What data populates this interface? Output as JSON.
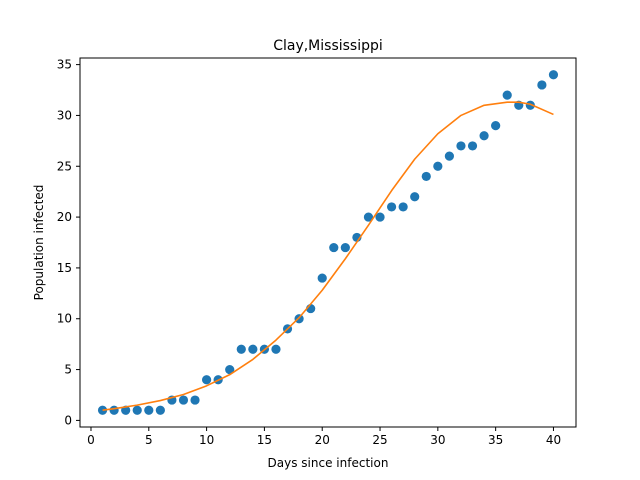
{
  "chart_data": {
    "type": "scatter",
    "title": "Clay,Mississippi",
    "xlabel": "Days since infection",
    "ylabel": "Population infected",
    "xlim": [
      -0.95,
      41.95
    ],
    "ylim": [
      -0.65,
      35.65
    ],
    "xticks": [
      0,
      5,
      10,
      15,
      20,
      25,
      30,
      35,
      40
    ],
    "yticks": [
      0,
      5,
      10,
      15,
      20,
      25,
      30,
      35
    ],
    "grid": false,
    "series": [
      {
        "kind": "scatter",
        "color": "#1f77b4",
        "x": [
          1,
          2,
          3,
          4,
          5,
          6,
          7,
          8,
          9,
          10,
          11,
          12,
          13,
          14,
          15,
          16,
          17,
          18,
          19,
          20,
          21,
          22,
          23,
          24,
          25,
          26,
          27,
          28,
          29,
          30,
          31,
          32,
          33,
          34,
          35,
          36,
          37,
          38,
          39,
          40
        ],
        "y": [
          1,
          1,
          1,
          1,
          1,
          1,
          2,
          2,
          2,
          4,
          4,
          5,
          7,
          7,
          7,
          7,
          9,
          10,
          11,
          14,
          17,
          17,
          18,
          20,
          20,
          21,
          21,
          22,
          24,
          25,
          26,
          27,
          27,
          28,
          29,
          32,
          31,
          31,
          33,
          34
        ]
      },
      {
        "kind": "line",
        "color": "#ff7f0e",
        "x": [
          1,
          2,
          4,
          6,
          8,
          10,
          12,
          14,
          16,
          18,
          20,
          22,
          24,
          26,
          28,
          30,
          32,
          34,
          36,
          37,
          38,
          40
        ],
        "y": [
          1.0,
          1.15,
          1.5,
          1.95,
          2.55,
          3.4,
          4.5,
          6.0,
          7.9,
          10.1,
          12.8,
          15.9,
          19.2,
          22.6,
          25.7,
          28.2,
          30.0,
          31.0,
          31.3,
          31.3,
          31.1,
          30.1
        ]
      }
    ]
  }
}
